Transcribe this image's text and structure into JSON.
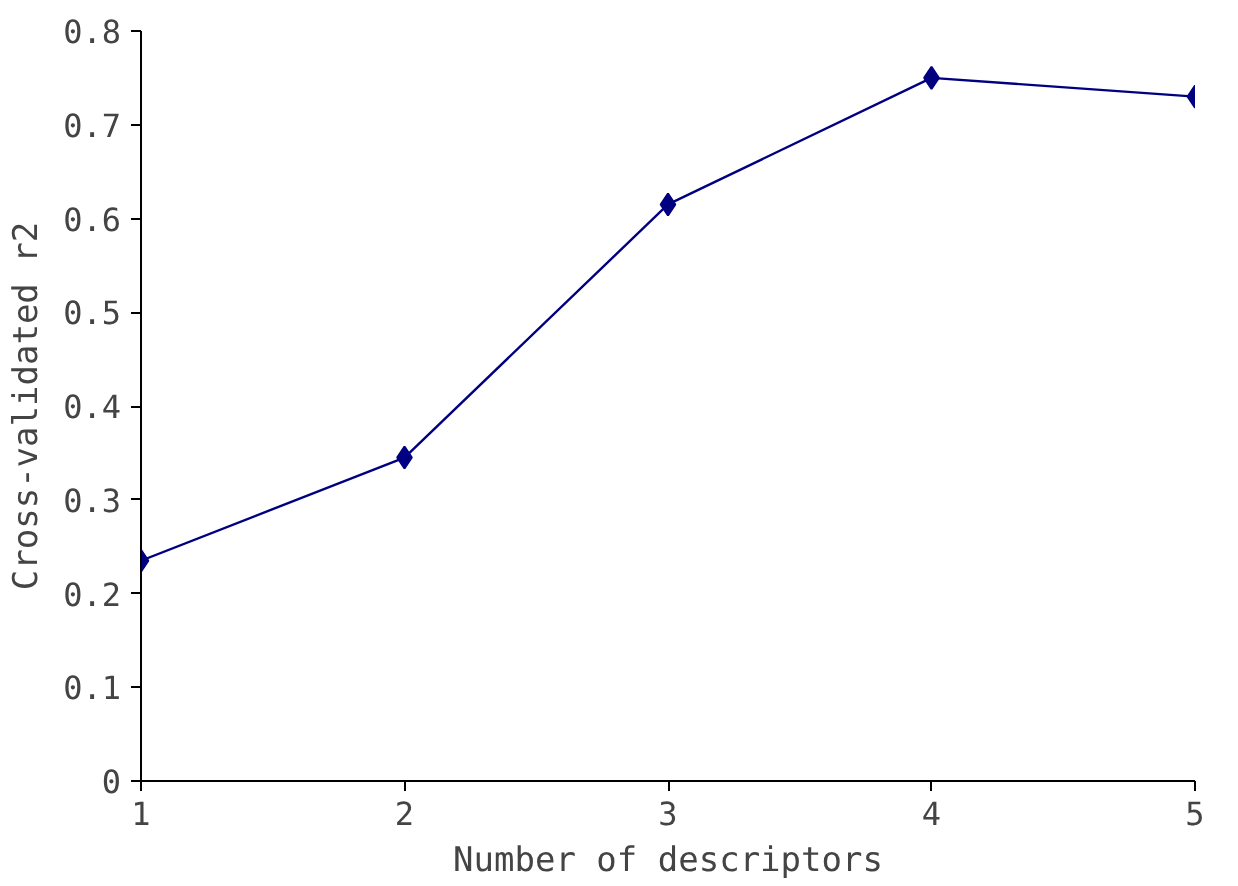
{
  "chart_data": {
    "type": "line",
    "xlabel": "Number of descriptors",
    "ylabel": "Cross-validated r2",
    "x": [
      1,
      2,
      3,
      4,
      5
    ],
    "series": [
      {
        "color": "#000080",
        "values": [
          0.235,
          0.345,
          0.615,
          0.75,
          0.73
        ]
      }
    ],
    "xlim": [
      1,
      5
    ],
    "xticks": [
      1,
      2,
      3,
      4,
      5
    ],
    "ylim": [
      0,
      0.8
    ],
    "yticks": [
      0,
      0.1,
      0.2,
      0.3,
      0.4,
      0.5,
      0.6,
      0.7,
      0.8
    ],
    "grid": false,
    "marker": "diamond",
    "line_style": "solid"
  }
}
